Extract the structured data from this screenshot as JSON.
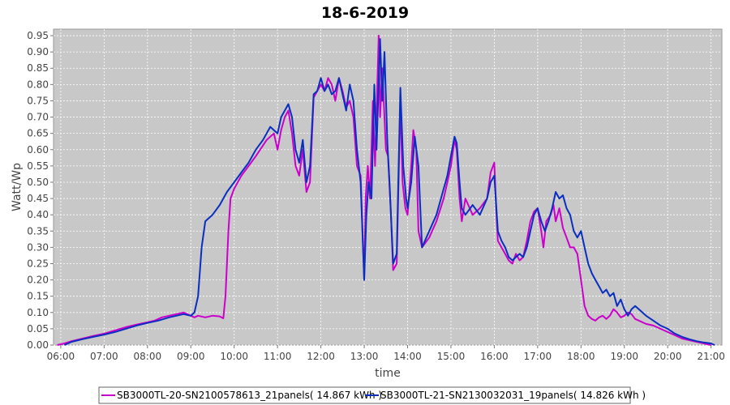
{
  "chart_data": {
    "type": "line",
    "title": "18-6-2019",
    "xlabel": "time",
    "ylabel": "Watt/Wp",
    "xlim": [
      "05:50",
      "21:15"
    ],
    "ylim": [
      0,
      0.97
    ],
    "x_ticks": [
      "06:00",
      "07:00",
      "08:00",
      "09:00",
      "10:00",
      "11:00",
      "12:00",
      "13:00",
      "14:00",
      "15:00",
      "16:00",
      "17:00",
      "18:00",
      "19:00",
      "20:00",
      "21:00"
    ],
    "y_ticks": [
      "0.00",
      "0.05",
      "0.10",
      "0.15",
      "0.20",
      "0.25",
      "0.30",
      "0.35",
      "0.40",
      "0.45",
      "0.50",
      "0.55",
      "0.60",
      "0.65",
      "0.70",
      "0.75",
      "0.80",
      "0.85",
      "0.90",
      "0.95"
    ],
    "grid": true,
    "legend_position": "bottom",
    "background": "#c8c8c8",
    "series": [
      {
        "name": "SB3000TL-20-SN2100578613_21panels( 14.867 kWh )",
        "color": "#cc00cc",
        "points": [
          [
            "05:55",
            0.0
          ],
          [
            "06:05",
            0.005
          ],
          [
            "06:15",
            0.012
          ],
          [
            "06:30",
            0.02
          ],
          [
            "06:45",
            0.028
          ],
          [
            "07:00",
            0.035
          ],
          [
            "07:15",
            0.045
          ],
          [
            "07:30",
            0.055
          ],
          [
            "07:45",
            0.063
          ],
          [
            "08:00",
            0.07
          ],
          [
            "08:10",
            0.075
          ],
          [
            "08:20",
            0.085
          ],
          [
            "08:30",
            0.09
          ],
          [
            "08:40",
            0.095
          ],
          [
            "08:50",
            0.1
          ],
          [
            "09:00",
            0.09
          ],
          [
            "09:05",
            0.085
          ],
          [
            "09:10",
            0.09
          ],
          [
            "09:20",
            0.085
          ],
          [
            "09:30",
            0.09
          ],
          [
            "09:40",
            0.088
          ],
          [
            "09:45",
            0.082
          ],
          [
            "09:48",
            0.15
          ],
          [
            "09:52",
            0.35
          ],
          [
            "09:55",
            0.45
          ],
          [
            "10:00",
            0.48
          ],
          [
            "10:10",
            0.52
          ],
          [
            "10:20",
            0.55
          ],
          [
            "10:30",
            0.58
          ],
          [
            "10:45",
            0.63
          ],
          [
            "10:55",
            0.65
          ],
          [
            "11:00",
            0.6
          ],
          [
            "11:05",
            0.66
          ],
          [
            "11:10",
            0.7
          ],
          [
            "11:15",
            0.72
          ],
          [
            "11:20",
            0.65
          ],
          [
            "11:25",
            0.55
          ],
          [
            "11:30",
            0.52
          ],
          [
            "11:35",
            0.6
          ],
          [
            "11:40",
            0.47
          ],
          [
            "11:45",
            0.5
          ],
          [
            "11:50",
            0.76
          ],
          [
            "11:55",
            0.78
          ],
          [
            "12:00",
            0.8
          ],
          [
            "12:05",
            0.78
          ],
          [
            "12:10",
            0.82
          ],
          [
            "12:15",
            0.8
          ],
          [
            "12:20",
            0.75
          ],
          [
            "12:25",
            0.82
          ],
          [
            "12:30",
            0.78
          ],
          [
            "12:35",
            0.73
          ],
          [
            "12:40",
            0.75
          ],
          [
            "12:45",
            0.7
          ],
          [
            "12:50",
            0.55
          ],
          [
            "12:55",
            0.52
          ],
          [
            "13:00",
            0.2
          ],
          [
            "13:02",
            0.45
          ],
          [
            "13:05",
            0.55
          ],
          [
            "13:08",
            0.45
          ],
          [
            "13:12",
            0.75
          ],
          [
            "13:15",
            0.55
          ],
          [
            "13:20",
            0.95
          ],
          [
            "13:22",
            0.7
          ],
          [
            "13:25",
            0.85
          ],
          [
            "13:30",
            0.6
          ],
          [
            "13:33",
            0.58
          ],
          [
            "13:37",
            0.4
          ],
          [
            "13:40",
            0.23
          ],
          [
            "13:45",
            0.25
          ],
          [
            "13:50",
            0.75
          ],
          [
            "13:53",
            0.5
          ],
          [
            "13:57",
            0.42
          ],
          [
            "14:00",
            0.4
          ],
          [
            "14:05",
            0.55
          ],
          [
            "14:08",
            0.66
          ],
          [
            "14:12",
            0.6
          ],
          [
            "14:15",
            0.35
          ],
          [
            "14:20",
            0.3
          ],
          [
            "14:30",
            0.33
          ],
          [
            "14:40",
            0.38
          ],
          [
            "14:50",
            0.45
          ],
          [
            "14:55",
            0.5
          ],
          [
            "15:00",
            0.55
          ],
          [
            "15:05",
            0.63
          ],
          [
            "15:08",
            0.6
          ],
          [
            "15:12",
            0.45
          ],
          [
            "15:15",
            0.38
          ],
          [
            "15:20",
            0.45
          ],
          [
            "15:30",
            0.4
          ],
          [
            "15:40",
            0.42
          ],
          [
            "15:50",
            0.45
          ],
          [
            "15:55",
            0.53
          ],
          [
            "16:00",
            0.56
          ],
          [
            "16:03",
            0.4
          ],
          [
            "16:05",
            0.32
          ],
          [
            "16:10",
            0.3
          ],
          [
            "16:15",
            0.28
          ],
          [
            "16:20",
            0.26
          ],
          [
            "16:25",
            0.25
          ],
          [
            "16:30",
            0.28
          ],
          [
            "16:35",
            0.26
          ],
          [
            "16:40",
            0.27
          ],
          [
            "16:45",
            0.32
          ],
          [
            "16:50",
            0.38
          ],
          [
            "16:55",
            0.41
          ],
          [
            "17:00",
            0.42
          ],
          [
            "17:05",
            0.35
          ],
          [
            "17:08",
            0.3
          ],
          [
            "17:12",
            0.38
          ],
          [
            "17:18",
            0.4
          ],
          [
            "17:22",
            0.43
          ],
          [
            "17:25",
            0.38
          ],
          [
            "17:30",
            0.42
          ],
          [
            "17:35",
            0.36
          ],
          [
            "17:40",
            0.33
          ],
          [
            "17:45",
            0.3
          ],
          [
            "17:50",
            0.3
          ],
          [
            "17:55",
            0.28
          ],
          [
            "18:00",
            0.2
          ],
          [
            "18:05",
            0.12
          ],
          [
            "18:10",
            0.09
          ],
          [
            "18:15",
            0.08
          ],
          [
            "18:20",
            0.075
          ],
          [
            "18:25",
            0.085
          ],
          [
            "18:30",
            0.09
          ],
          [
            "18:35",
            0.08
          ],
          [
            "18:40",
            0.09
          ],
          [
            "18:45",
            0.11
          ],
          [
            "18:50",
            0.1
          ],
          [
            "18:55",
            0.085
          ],
          [
            "19:00",
            0.09
          ],
          [
            "19:05",
            0.1
          ],
          [
            "19:10",
            0.095
          ],
          [
            "19:15",
            0.08
          ],
          [
            "19:20",
            0.075
          ],
          [
            "19:30",
            0.065
          ],
          [
            "19:40",
            0.06
          ],
          [
            "19:50",
            0.05
          ],
          [
            "20:00",
            0.04
          ],
          [
            "20:10",
            0.03
          ],
          [
            "20:20",
            0.02
          ],
          [
            "20:30",
            0.015
          ],
          [
            "20:40",
            0.01
          ],
          [
            "20:50",
            0.005
          ],
          [
            "21:00",
            0.0
          ]
        ]
      },
      {
        "name": "SB3000TL-21-SN2130032031_19panels( 14.826 kWh )",
        "color": "#0a2fc0",
        "points": [
          [
            "06:05",
            0.0
          ],
          [
            "06:15",
            0.01
          ],
          [
            "06:30",
            0.018
          ],
          [
            "06:45",
            0.025
          ],
          [
            "07:00",
            0.032
          ],
          [
            "07:15",
            0.04
          ],
          [
            "07:30",
            0.05
          ],
          [
            "07:45",
            0.06
          ],
          [
            "08:00",
            0.068
          ],
          [
            "08:15",
            0.075
          ],
          [
            "08:30",
            0.085
          ],
          [
            "08:40",
            0.09
          ],
          [
            "08:50",
            0.095
          ],
          [
            "09:00",
            0.09
          ],
          [
            "09:05",
            0.1
          ],
          [
            "09:10",
            0.15
          ],
          [
            "09:15",
            0.3
          ],
          [
            "09:20",
            0.38
          ],
          [
            "09:25",
            0.39
          ],
          [
            "09:30",
            0.4
          ],
          [
            "09:40",
            0.43
          ],
          [
            "09:50",
            0.47
          ],
          [
            "10:00",
            0.5
          ],
          [
            "10:10",
            0.53
          ],
          [
            "10:20",
            0.56
          ],
          [
            "10:30",
            0.6
          ],
          [
            "10:40",
            0.63
          ],
          [
            "10:50",
            0.67
          ],
          [
            "11:00",
            0.65
          ],
          [
            "11:05",
            0.7
          ],
          [
            "11:10",
            0.72
          ],
          [
            "11:15",
            0.74
          ],
          [
            "11:20",
            0.7
          ],
          [
            "11:25",
            0.6
          ],
          [
            "11:30",
            0.56
          ],
          [
            "11:35",
            0.63
          ],
          [
            "11:40",
            0.5
          ],
          [
            "11:45",
            0.55
          ],
          [
            "11:50",
            0.77
          ],
          [
            "11:55",
            0.78
          ],
          [
            "12:00",
            0.82
          ],
          [
            "12:05",
            0.78
          ],
          [
            "12:10",
            0.8
          ],
          [
            "12:15",
            0.77
          ],
          [
            "12:20",
            0.78
          ],
          [
            "12:25",
            0.82
          ],
          [
            "12:30",
            0.77
          ],
          [
            "12:35",
            0.72
          ],
          [
            "12:40",
            0.8
          ],
          [
            "12:45",
            0.75
          ],
          [
            "12:50",
            0.6
          ],
          [
            "12:55",
            0.5
          ],
          [
            "13:00",
            0.2
          ],
          [
            "13:03",
            0.4
          ],
          [
            "13:06",
            0.5
          ],
          [
            "13:10",
            0.45
          ],
          [
            "13:14",
            0.8
          ],
          [
            "13:17",
            0.6
          ],
          [
            "13:22",
            0.94
          ],
          [
            "13:25",
            0.75
          ],
          [
            "13:28",
            0.9
          ],
          [
            "13:32",
            0.62
          ],
          [
            "13:35",
            0.5
          ],
          [
            "13:40",
            0.25
          ],
          [
            "13:45",
            0.28
          ],
          [
            "13:50",
            0.79
          ],
          [
            "13:54",
            0.55
          ],
          [
            "13:58",
            0.45
          ],
          [
            "14:00",
            0.42
          ],
          [
            "14:05",
            0.5
          ],
          [
            "14:10",
            0.64
          ],
          [
            "14:15",
            0.55
          ],
          [
            "14:20",
            0.3
          ],
          [
            "14:30",
            0.35
          ],
          [
            "14:40",
            0.4
          ],
          [
            "14:50",
            0.48
          ],
          [
            "14:55",
            0.52
          ],
          [
            "15:00",
            0.58
          ],
          [
            "15:05",
            0.64
          ],
          [
            "15:08",
            0.62
          ],
          [
            "15:12",
            0.5
          ],
          [
            "15:15",
            0.42
          ],
          [
            "15:20",
            0.4
          ],
          [
            "15:30",
            0.43
          ],
          [
            "15:40",
            0.4
          ],
          [
            "15:50",
            0.45
          ],
          [
            "15:55",
            0.5
          ],
          [
            "16:00",
            0.52
          ],
          [
            "16:05",
            0.35
          ],
          [
            "16:10",
            0.32
          ],
          [
            "16:15",
            0.3
          ],
          [
            "16:20",
            0.27
          ],
          [
            "16:25",
            0.26
          ],
          [
            "16:30",
            0.27
          ],
          [
            "16:35",
            0.28
          ],
          [
            "16:40",
            0.27
          ],
          [
            "16:45",
            0.3
          ],
          [
            "16:50",
            0.35
          ],
          [
            "16:55",
            0.4
          ],
          [
            "17:00",
            0.42
          ],
          [
            "17:05",
            0.38
          ],
          [
            "17:10",
            0.35
          ],
          [
            "17:15",
            0.38
          ],
          [
            "17:20",
            0.42
          ],
          [
            "17:25",
            0.47
          ],
          [
            "17:30",
            0.45
          ],
          [
            "17:35",
            0.46
          ],
          [
            "17:40",
            0.42
          ],
          [
            "17:45",
            0.4
          ],
          [
            "17:50",
            0.35
          ],
          [
            "17:55",
            0.33
          ],
          [
            "18:00",
            0.35
          ],
          [
            "18:05",
            0.3
          ],
          [
            "18:10",
            0.25
          ],
          [
            "18:15",
            0.22
          ],
          [
            "18:20",
            0.2
          ],
          [
            "18:25",
            0.18
          ],
          [
            "18:30",
            0.16
          ],
          [
            "18:35",
            0.17
          ],
          [
            "18:40",
            0.15
          ],
          [
            "18:45",
            0.16
          ],
          [
            "18:50",
            0.12
          ],
          [
            "18:55",
            0.14
          ],
          [
            "19:00",
            0.11
          ],
          [
            "19:05",
            0.09
          ],
          [
            "19:10",
            0.11
          ],
          [
            "19:15",
            0.12
          ],
          [
            "19:20",
            0.11
          ],
          [
            "19:30",
            0.09
          ],
          [
            "19:40",
            0.075
          ],
          [
            "19:50",
            0.06
          ],
          [
            "20:00",
            0.05
          ],
          [
            "20:10",
            0.035
          ],
          [
            "20:20",
            0.025
          ],
          [
            "20:30",
            0.018
          ],
          [
            "20:40",
            0.012
          ],
          [
            "20:50",
            0.008
          ],
          [
            "21:00",
            0.005
          ],
          [
            "21:05",
            0.0
          ]
        ]
      }
    ]
  }
}
